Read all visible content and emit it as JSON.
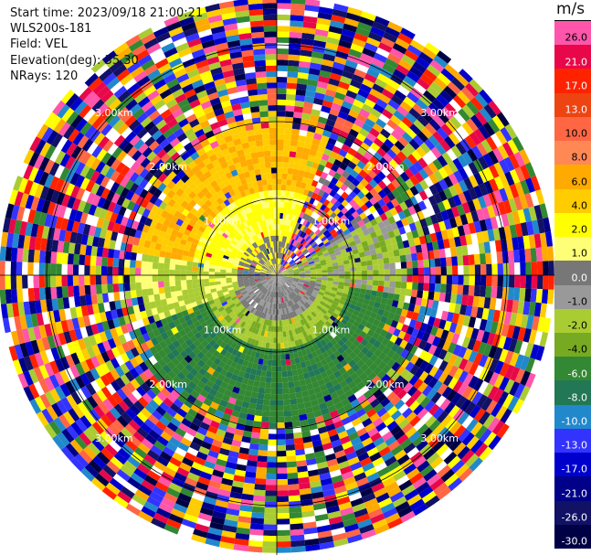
{
  "info": {
    "start_time": "Start time: 2023/09/18 21:00:21",
    "instrument": "WLS200s-181",
    "field": "Field: VEL",
    "elevation": "Elevation(deg): 35.30",
    "nrays": "NRays: 120"
  },
  "range_rings": {
    "labels": [
      "1.00km",
      "2.00km",
      "3.00km"
    ]
  },
  "colorbar": {
    "unit": "m/s",
    "labels": [
      "26.0",
      "21.0",
      "17.0",
      "13.0",
      "10.0",
      "8.0",
      "6.0",
      "4.0",
      "2.0",
      "1.0",
      "0.0",
      "-1.0",
      "-2.0",
      "-4.0",
      "-6.0",
      "-8.0",
      "-10.0",
      "-13.0",
      "-17.0",
      "-21.0",
      "-26.0",
      "-30.0"
    ],
    "colors": [
      "#ff55aa",
      "#e8084a",
      "#ff2200",
      "#ee4411",
      "#ff6644",
      "#ff8855",
      "#ffaa00",
      "#ffcc00",
      "#ffff00",
      "#ffff77",
      "#777777",
      "#999999",
      "#aacc33",
      "#77aa22",
      "#338833",
      "#227755",
      "#2288cc",
      "#3333ff",
      "#0000cc",
      "#000088",
      "#111166",
      "#000044"
    ]
  }
}
